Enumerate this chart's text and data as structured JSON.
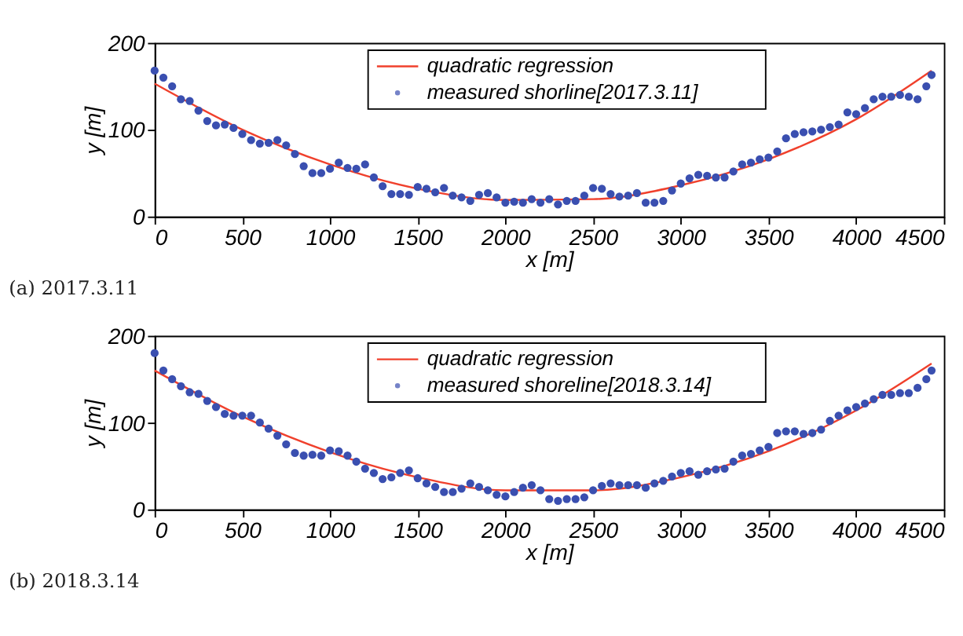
{
  "chart_data": [
    {
      "type": "scatter",
      "xlabel": "x [m]",
      "ylabel": "y [m]",
      "xlim": [
        0,
        4500
      ],
      "xticks": [
        0,
        500,
        1000,
        1500,
        2000,
        2500,
        3000,
        3500,
        4000,
        4500
      ],
      "ylim": [
        0,
        200
      ],
      "yticks": [
        0,
        100,
        200
      ],
      "grid": false,
      "legend": "top",
      "annotations": [
        "(a) 2017.3.11"
      ],
      "series": [
        {
          "name": "quadratic regression",
          "type": "line",
          "color": "#f0402c",
          "x": [
            0,
            500,
            1000,
            1500,
            2000,
            2500,
            3000,
            3500,
            4000,
            4430
          ],
          "values": [
            153,
            100,
            60,
            32,
            19,
            20,
            36,
            66,
            112,
            168
          ]
        },
        {
          "name": "measured shorline[2017.3.11]",
          "marker": "circle",
          "color": "#3a4fb0",
          "x": [
            0,
            50,
            100,
            150,
            200,
            250,
            300,
            350,
            400,
            450,
            500,
            550,
            600,
            650,
            700,
            750,
            800,
            850,
            900,
            950,
            1000,
            1050,
            1100,
            1150,
            1200,
            1250,
            1300,
            1350,
            1400,
            1450,
            1500,
            1550,
            1600,
            1650,
            1700,
            1750,
            1800,
            1850,
            1900,
            1950,
            2000,
            2050,
            2100,
            2150,
            2200,
            2250,
            2300,
            2350,
            2400,
            2450,
            2500,
            2550,
            2600,
            2650,
            2700,
            2750,
            2800,
            2850,
            2900,
            2950,
            3000,
            3050,
            3100,
            3150,
            3200,
            3250,
            3300,
            3350,
            3400,
            3450,
            3500,
            3550,
            3600,
            3650,
            3700,
            3750,
            3800,
            3850,
            3900,
            3950,
            4000,
            4050,
            4100,
            4150,
            4200,
            4250,
            4300,
            4350,
            4400,
            4430
          ],
          "values": [
            168,
            160,
            150,
            135,
            133,
            122,
            110,
            105,
            106,
            102,
            95,
            88,
            84,
            85,
            88,
            82,
            72,
            58,
            50,
            50,
            55,
            62,
            56,
            55,
            60,
            45,
            35,
            26,
            26,
            25,
            34,
            32,
            28,
            33,
            24,
            22,
            18,
            25,
            27,
            22,
            16,
            17,
            16,
            20,
            16,
            20,
            14,
            18,
            18,
            24,
            33,
            32,
            26,
            23,
            24,
            27,
            16,
            16,
            18,
            30,
            38,
            44,
            48,
            47,
            45,
            45,
            52,
            60,
            62,
            66,
            68,
            75,
            90,
            95,
            97,
            98,
            100,
            103,
            106,
            120,
            118,
            125,
            135,
            138,
            138,
            140,
            138,
            135,
            150,
            163
          ]
        }
      ]
    },
    {
      "type": "scatter",
      "xlabel": "x [m]",
      "ylabel": "y [m]",
      "xlim": [
        0,
        4500
      ],
      "xticks": [
        0,
        500,
        1000,
        1500,
        2000,
        2500,
        3000,
        3500,
        4000,
        4500
      ],
      "ylim": [
        0,
        200
      ],
      "yticks": [
        0,
        100,
        200
      ],
      "grid": false,
      "legend": "top",
      "annotations": [
        "(b) 2018.3.14"
      ],
      "series": [
        {
          "name": "quadratic regression",
          "type": "line",
          "color": "#f0402c",
          "x": [
            0,
            500,
            1000,
            1500,
            2000,
            2500,
            3000,
            3500,
            4000,
            4430
          ],
          "values": [
            160,
            107,
            66,
            37,
            22,
            22,
            37,
            67,
            114,
            168
          ]
        },
        {
          "name": "measured shoreline[2018.3.14]",
          "marker": "circle",
          "color": "#3a4fb0",
          "x": [
            0,
            50,
            100,
            150,
            200,
            250,
            300,
            350,
            400,
            450,
            500,
            550,
            600,
            650,
            700,
            750,
            800,
            850,
            900,
            950,
            1000,
            1050,
            1100,
            1150,
            1200,
            1250,
            1300,
            1350,
            1400,
            1450,
            1500,
            1550,
            1600,
            1650,
            1700,
            1750,
            1800,
            1850,
            1900,
            1950,
            2000,
            2050,
            2100,
            2150,
            2200,
            2250,
            2300,
            2350,
            2400,
            2450,
            2500,
            2550,
            2600,
            2650,
            2700,
            2750,
            2800,
            2850,
            2900,
            2950,
            3000,
            3050,
            3100,
            3150,
            3200,
            3250,
            3300,
            3350,
            3400,
            3450,
            3500,
            3550,
            3600,
            3650,
            3700,
            3750,
            3800,
            3850,
            3900,
            3950,
            4000,
            4050,
            4100,
            4150,
            4200,
            4250,
            4300,
            4350,
            4400,
            4430
          ],
          "values": [
            180,
            160,
            150,
            142,
            135,
            133,
            125,
            118,
            110,
            108,
            108,
            108,
            100,
            93,
            85,
            75,
            65,
            62,
            63,
            62,
            68,
            67,
            62,
            55,
            47,
            42,
            35,
            37,
            42,
            45,
            36,
            30,
            26,
            20,
            20,
            24,
            30,
            26,
            22,
            17,
            15,
            20,
            25,
            28,
            22,
            12,
            10,
            12,
            12,
            14,
            22,
            27,
            30,
            28,
            28,
            28,
            25,
            30,
            33,
            38,
            42,
            44,
            40,
            44,
            46,
            47,
            55,
            62,
            64,
            68,
            72,
            88,
            90,
            90,
            87,
            88,
            92,
            102,
            108,
            114,
            118,
            122,
            127,
            132,
            132,
            134,
            134,
            140,
            150,
            160
          ]
        }
      ]
    }
  ]
}
